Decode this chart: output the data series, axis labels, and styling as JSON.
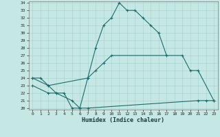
{
  "xlabel": "Humidex (Indice chaleur)",
  "background_color": "#c5e8e5",
  "grid_color": "#aad4d0",
  "line_color": "#1a6b6b",
  "line1_x": [
    0,
    1,
    2,
    3,
    4,
    5,
    6,
    7,
    8,
    9,
    10,
    11,
    12,
    13,
    14,
    15,
    16,
    17
  ],
  "line1_y": [
    24,
    24,
    23,
    22,
    22,
    20,
    20,
    24,
    28,
    31,
    32,
    34,
    33,
    33,
    32,
    31,
    30,
    27
  ],
  "line2_x": [
    0,
    2,
    7,
    8,
    9,
    10,
    19,
    20,
    21,
    23
  ],
  "line2_y": [
    24,
    23,
    24,
    25,
    26,
    27,
    27,
    25,
    25,
    21
  ],
  "line3_x": [
    0,
    2,
    3,
    5,
    6,
    7,
    21,
    22,
    23
  ],
  "line3_y": [
    23,
    22,
    22,
    21,
    20,
    20,
    21,
    21,
    21
  ],
  "ylim": [
    20,
    34
  ],
  "xlim": [
    0,
    23
  ],
  "yticks": [
    20,
    21,
    22,
    23,
    24,
    25,
    26,
    27,
    28,
    29,
    30,
    31,
    32,
    33,
    34
  ],
  "xticks": [
    0,
    1,
    2,
    3,
    4,
    5,
    6,
    7,
    8,
    9,
    10,
    11,
    12,
    13,
    14,
    15,
    16,
    17,
    18,
    19,
    20,
    21,
    22,
    23
  ]
}
